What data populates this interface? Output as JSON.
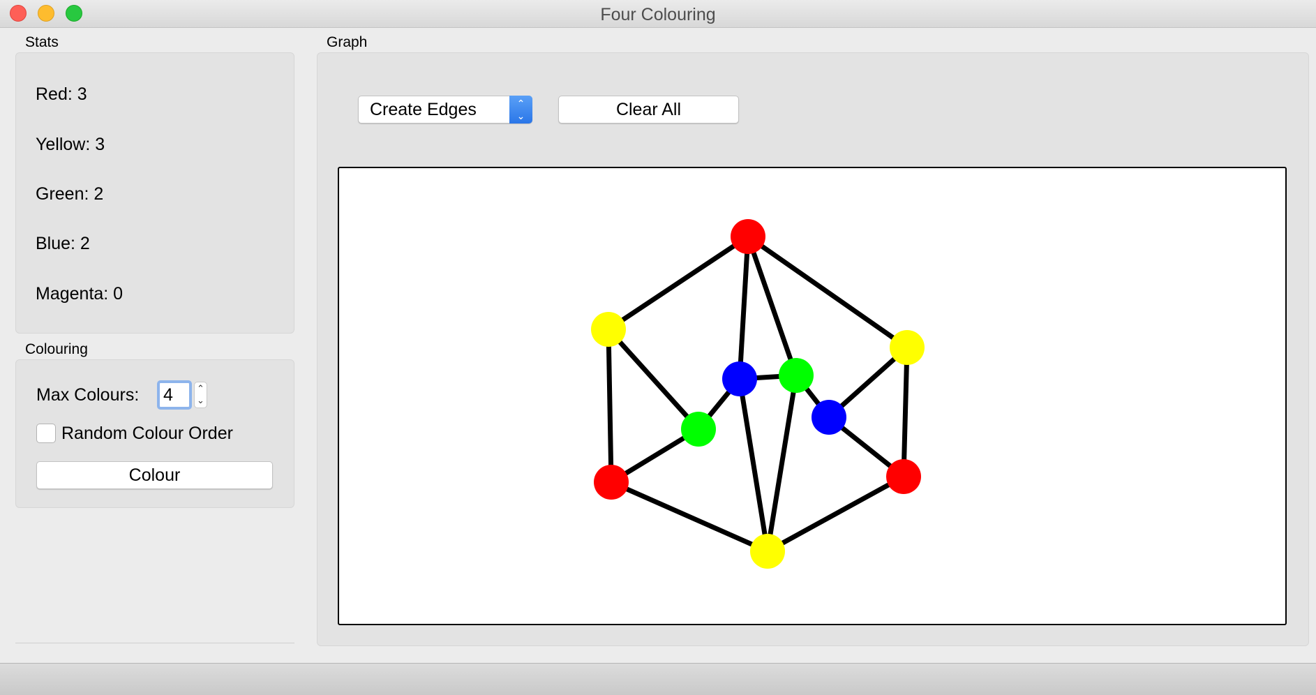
{
  "window": {
    "title": "Four Colouring"
  },
  "stats": {
    "title": "Stats",
    "lines": [
      "Red: 3",
      "Yellow: 3",
      "Green: 2",
      "Blue: 2",
      "Magenta: 0"
    ]
  },
  "colouring": {
    "title": "Colouring",
    "max_colours_label": "Max Colours:",
    "max_colours_value": "4",
    "random_order_label": "Random Colour Order",
    "random_order_checked": false,
    "colour_button": "Colour"
  },
  "graph": {
    "title": "Graph",
    "mode_selected": "Create Edges",
    "clear_button": "Clear All",
    "colors": {
      "red": "#ff0000",
      "yellow": "#ffff00",
      "green": "#00ff00",
      "blue": "#0000ff"
    },
    "nodes": [
      {
        "id": "top",
        "color": "red"
      },
      {
        "id": "left-upper",
        "color": "yellow"
      },
      {
        "id": "right-upper",
        "color": "yellow"
      },
      {
        "id": "center-left",
        "color": "blue"
      },
      {
        "id": "center-right",
        "color": "green"
      },
      {
        "id": "inner-left",
        "color": "green"
      },
      {
        "id": "inner-right",
        "color": "blue"
      },
      {
        "id": "left-lower",
        "color": "red"
      },
      {
        "id": "right-lower",
        "color": "red"
      },
      {
        "id": "bottom",
        "color": "yellow"
      }
    ],
    "edges": [
      [
        "top",
        "left-upper"
      ],
      [
        "top",
        "right-upper"
      ],
      [
        "top",
        "center-left"
      ],
      [
        "top",
        "center-right"
      ],
      [
        "left-upper",
        "inner-left"
      ],
      [
        "left-upper",
        "left-lower"
      ],
      [
        "right-upper",
        "inner-right"
      ],
      [
        "right-upper",
        "right-lower"
      ],
      [
        "center-left",
        "center-right"
      ],
      [
        "center-left",
        "inner-left"
      ],
      [
        "center-left",
        "bottom"
      ],
      [
        "center-right",
        "inner-right"
      ],
      [
        "center-right",
        "bottom"
      ],
      [
        "inner-left",
        "left-lower"
      ],
      [
        "inner-right",
        "right-lower"
      ],
      [
        "left-lower",
        "bottom"
      ],
      [
        "right-lower",
        "bottom"
      ]
    ]
  }
}
